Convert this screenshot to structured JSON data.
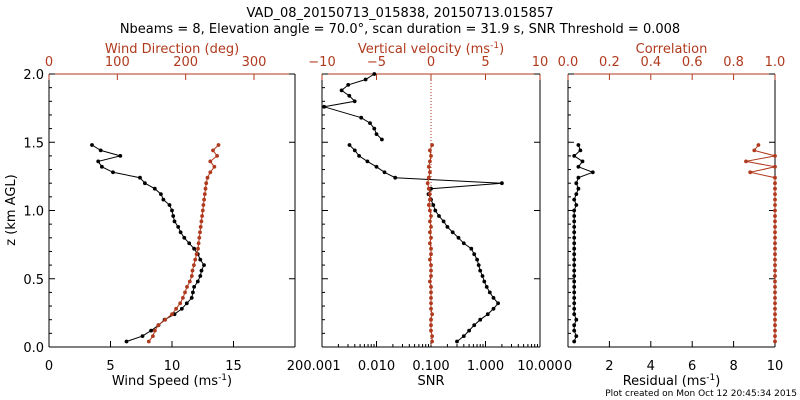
{
  "title_line1": "VAD_08_20150713_015838, 20150713.015857",
  "title_line2": "Nbeams = 8, Elevation angle = 70.0°, scan duration = 31.9 s, SNR Threshold = 0.008",
  "footer": "Plot created on Mon Oct 12 20:45:34 2015",
  "colors": {
    "primary": "#000000",
    "secondary": "#b03a1e"
  },
  "chart_data": [
    {
      "type": "line",
      "ylabel": "z (km AGL)",
      "ylim": [
        0,
        2.0
      ],
      "yticks": [
        "0.0",
        "0.5",
        "1.0",
        "1.5",
        "2.0"
      ],
      "bottom_axis": {
        "label": "Wind Speed (ms",
        "label_sup": "-1",
        "label_end": ")",
        "xlim": [
          0,
          20
        ],
        "ticks": [
          "0",
          "5",
          "10",
          "15",
          "20"
        ]
      },
      "top_axis": {
        "label": "Wind Direction (deg)",
        "xlim": [
          0,
          360
        ],
        "ticks": [
          "0",
          "100",
          "200",
          "300"
        ]
      },
      "series": [
        {
          "axis": "bottom",
          "color": "#000000",
          "points": [
            [
              6.3,
              0.04
            ],
            [
              7.6,
              0.08
            ],
            [
              8.3,
              0.12
            ],
            [
              8.9,
              0.16
            ],
            [
              9.4,
              0.2
            ],
            [
              10.2,
              0.24
            ],
            [
              10.8,
              0.28
            ],
            [
              11.2,
              0.32
            ],
            [
              11.6,
              0.36
            ],
            [
              11.7,
              0.4
            ],
            [
              11.8,
              0.44
            ],
            [
              12.1,
              0.48
            ],
            [
              12.3,
              0.52
            ],
            [
              12.4,
              0.56
            ],
            [
              12.6,
              0.6
            ],
            [
              12.3,
              0.64
            ],
            [
              12.1,
              0.68
            ],
            [
              11.8,
              0.72
            ],
            [
              11.4,
              0.76
            ],
            [
              11.0,
              0.8
            ],
            [
              10.7,
              0.84
            ],
            [
              10.5,
              0.88
            ],
            [
              10.2,
              0.92
            ],
            [
              10.1,
              0.96
            ],
            [
              10.0,
              1.0
            ],
            [
              9.8,
              1.04
            ],
            [
              9.3,
              1.08
            ],
            [
              9.1,
              1.12
            ],
            [
              8.6,
              1.16
            ],
            [
              7.8,
              1.2
            ],
            [
              7.4,
              1.24
            ],
            [
              5.2,
              1.28
            ],
            [
              4.3,
              1.32
            ],
            [
              4.0,
              1.36
            ],
            [
              5.8,
              1.4
            ],
            [
              4.2,
              1.44
            ],
            [
              3.5,
              1.48
            ]
          ]
        },
        {
          "axis": "top",
          "color": "#b03a1e",
          "points": [
            [
              146,
              0.04
            ],
            [
              152,
              0.08
            ],
            [
              155,
              0.12
            ],
            [
              160,
              0.16
            ],
            [
              170,
              0.2
            ],
            [
              180,
              0.24
            ],
            [
              186,
              0.28
            ],
            [
              192,
              0.32
            ],
            [
              196,
              0.36
            ],
            [
              199,
              0.4
            ],
            [
              202,
              0.44
            ],
            [
              206,
              0.48
            ],
            [
              209,
              0.52
            ],
            [
              210,
              0.56
            ],
            [
              212,
              0.6
            ],
            [
              214,
              0.64
            ],
            [
              216,
              0.68
            ],
            [
              218,
              0.72
            ],
            [
              219,
              0.76
            ],
            [
              220,
              0.8
            ],
            [
              221,
              0.84
            ],
            [
              222,
              0.88
            ],
            [
              223,
              0.92
            ],
            [
              224,
              0.96
            ],
            [
              225,
              1.0
            ],
            [
              226,
              1.04
            ],
            [
              227,
              1.08
            ],
            [
              228,
              1.12
            ],
            [
              229,
              1.16
            ],
            [
              230,
              1.2
            ],
            [
              232,
              1.24
            ],
            [
              236,
              1.28
            ],
            [
              242,
              1.32
            ],
            [
              236,
              1.36
            ],
            [
              246,
              1.4
            ],
            [
              240,
              1.44
            ],
            [
              248,
              1.48
            ]
          ]
        }
      ]
    },
    {
      "type": "line",
      "bottom_axis": {
        "label": "SNR",
        "xlim": [
          0.001,
          10
        ],
        "scale": "log",
        "ticks": [
          "0.001",
          "0.010",
          "0.100",
          "1.000",
          "10.000"
        ]
      },
      "top_axis": {
        "label": "Vertical velocity (ms",
        "label_sup": "-1",
        "label_end": ")",
        "xlim": [
          -10,
          10
        ],
        "ticks": [
          "−10",
          "−5",
          "0",
          "5",
          "10"
        ]
      },
      "zero_line": {
        "axis": "top",
        "value": 0
      },
      "series": [
        {
          "axis": "bottom",
          "color": "#000000",
          "points": [
            [
              0.3,
              0.04
            ],
            [
              0.4,
              0.08
            ],
            [
              0.5,
              0.12
            ],
            [
              0.62,
              0.16
            ],
            [
              0.8,
              0.2
            ],
            [
              1.1,
              0.24
            ],
            [
              1.4,
              0.28
            ],
            [
              1.7,
              0.32
            ],
            [
              1.4,
              0.36
            ],
            [
              1.2,
              0.4
            ],
            [
              1.05,
              0.44
            ],
            [
              0.95,
              0.48
            ],
            [
              0.88,
              0.52
            ],
            [
              0.8,
              0.56
            ],
            [
              0.75,
              0.6
            ],
            [
              0.7,
              0.64
            ],
            [
              0.62,
              0.68
            ],
            [
              0.55,
              0.72
            ],
            [
              0.4,
              0.76
            ],
            [
              0.32,
              0.8
            ],
            [
              0.25,
              0.84
            ],
            [
              0.2,
              0.88
            ],
            [
              0.17,
              0.92
            ],
            [
              0.14,
              0.96
            ],
            [
              0.12,
              1.0
            ],
            [
              0.11,
              1.04
            ],
            [
              0.1,
              1.08
            ],
            [
              0.09,
              1.12
            ],
            [
              0.1,
              1.16
            ],
            [
              2.0,
              1.2
            ],
            [
              0.022,
              1.24
            ],
            [
              0.014,
              1.28
            ],
            [
              0.01,
              1.32
            ],
            [
              0.0068,
              1.36
            ],
            [
              0.0048,
              1.4
            ],
            [
              0.004,
              1.44
            ],
            [
              0.0032,
              1.48
            ]
          ]
        },
        {
          "axis": "top",
          "color": "#000000",
          "points": [
            [
              -4.5,
              1.52
            ],
            [
              -5.0,
              1.56
            ],
            [
              -5.2,
              1.6
            ],
            [
              -5.6,
              1.64
            ],
            [
              -6.4,
              1.68
            ],
            [
              -9.8,
              1.76
            ],
            [
              -7.0,
              1.8
            ],
            [
              -7.5,
              1.84
            ],
            [
              -8.2,
              1.88
            ],
            [
              -7.6,
              1.92
            ],
            [
              -6.0,
              1.96
            ],
            [
              -5.2,
              2.0
            ]
          ]
        },
        {
          "axis": "top",
          "color": "#b03a1e",
          "points": [
            [
              0.1,
              0.04
            ],
            [
              0.1,
              0.08
            ],
            [
              0.0,
              0.12
            ],
            [
              0.0,
              0.16
            ],
            [
              0.0,
              0.2
            ],
            [
              0.1,
              0.24
            ],
            [
              0.0,
              0.28
            ],
            [
              0.0,
              0.32
            ],
            [
              0.0,
              0.36
            ],
            [
              0.0,
              0.4
            ],
            [
              0.0,
              0.44
            ],
            [
              -0.1,
              0.48
            ],
            [
              0.0,
              0.52
            ],
            [
              0.0,
              0.56
            ],
            [
              0.0,
              0.6
            ],
            [
              -0.1,
              0.64
            ],
            [
              0.0,
              0.68
            ],
            [
              0.0,
              0.72
            ],
            [
              -0.1,
              0.76
            ],
            [
              0.0,
              0.8
            ],
            [
              -0.1,
              0.84
            ],
            [
              0.0,
              0.88
            ],
            [
              -0.1,
              0.92
            ],
            [
              0.0,
              0.96
            ],
            [
              -0.1,
              1.0
            ],
            [
              -0.2,
              1.04
            ],
            [
              -0.1,
              1.08
            ],
            [
              -0.1,
              1.12
            ],
            [
              -0.2,
              1.16
            ],
            [
              -0.3,
              1.2
            ],
            [
              -0.2,
              1.24
            ],
            [
              -0.1,
              1.28
            ],
            [
              -0.2,
              1.32
            ],
            [
              -0.1,
              1.36
            ],
            [
              0.0,
              1.4
            ],
            [
              -0.1,
              1.44
            ],
            [
              0.1,
              1.48
            ]
          ]
        }
      ]
    },
    {
      "type": "line",
      "bottom_axis": {
        "label": "Residual (ms",
        "label_sup": "-1",
        "label_end": ")",
        "xlim": [
          0,
          10
        ],
        "ticks": [
          "0",
          "2",
          "4",
          "6",
          "8",
          "10"
        ]
      },
      "top_axis": {
        "label": "Correlation",
        "xlim": [
          0,
          1.0
        ],
        "ticks": [
          "0.0",
          "0.2",
          "0.4",
          "0.6",
          "0.8",
          "1.0"
        ]
      },
      "series": [
        {
          "axis": "bottom",
          "color": "#000000",
          "points": [
            [
              0.3,
              0.04
            ],
            [
              0.4,
              0.08
            ],
            [
              0.3,
              0.12
            ],
            [
              0.3,
              0.16
            ],
            [
              0.4,
              0.2
            ],
            [
              0.3,
              0.24
            ],
            [
              0.3,
              0.28
            ],
            [
              0.3,
              0.32
            ],
            [
              0.3,
              0.36
            ],
            [
              0.3,
              0.4
            ],
            [
              0.3,
              0.44
            ],
            [
              0.3,
              0.48
            ],
            [
              0.3,
              0.52
            ],
            [
              0.3,
              0.56
            ],
            [
              0.3,
              0.6
            ],
            [
              0.3,
              0.64
            ],
            [
              0.3,
              0.68
            ],
            [
              0.3,
              0.72
            ],
            [
              0.3,
              0.76
            ],
            [
              0.3,
              0.8
            ],
            [
              0.3,
              0.84
            ],
            [
              0.3,
              0.88
            ],
            [
              0.3,
              0.92
            ],
            [
              0.3,
              0.96
            ],
            [
              0.3,
              1.0
            ],
            [
              0.4,
              1.04
            ],
            [
              0.3,
              1.08
            ],
            [
              0.4,
              1.12
            ],
            [
              0.5,
              1.16
            ],
            [
              0.4,
              1.2
            ],
            [
              0.5,
              1.24
            ],
            [
              1.2,
              1.28
            ],
            [
              0.5,
              1.32
            ],
            [
              0.7,
              1.36
            ],
            [
              0.3,
              1.4
            ],
            [
              0.6,
              1.44
            ],
            [
              0.5,
              1.48
            ]
          ]
        },
        {
          "axis": "top",
          "color": "#b03a1e",
          "points": [
            [
              1.0,
              0.04
            ],
            [
              1.0,
              0.08
            ],
            [
              1.0,
              0.12
            ],
            [
              1.0,
              0.16
            ],
            [
              1.0,
              0.2
            ],
            [
              1.0,
              0.24
            ],
            [
              1.0,
              0.28
            ],
            [
              1.0,
              0.32
            ],
            [
              1.0,
              0.36
            ],
            [
              1.0,
              0.4
            ],
            [
              1.0,
              0.44
            ],
            [
              1.0,
              0.48
            ],
            [
              1.0,
              0.52
            ],
            [
              1.0,
              0.56
            ],
            [
              1.0,
              0.6
            ],
            [
              1.0,
              0.64
            ],
            [
              1.0,
              0.68
            ],
            [
              1.0,
              0.72
            ],
            [
              1.0,
              0.76
            ],
            [
              1.0,
              0.8
            ],
            [
              1.0,
              0.84
            ],
            [
              1.0,
              0.88
            ],
            [
              1.0,
              0.92
            ],
            [
              1.0,
              0.96
            ],
            [
              1.0,
              1.0
            ],
            [
              1.0,
              1.04
            ],
            [
              1.0,
              1.08
            ],
            [
              1.0,
              1.12
            ],
            [
              1.0,
              1.16
            ],
            [
              1.0,
              1.2
            ],
            [
              1.0,
              1.24
            ],
            [
              0.88,
              1.28
            ],
            [
              1.0,
              1.32
            ],
            [
              0.86,
              1.36
            ],
            [
              1.0,
              1.4
            ],
            [
              0.9,
              1.44
            ],
            [
              0.92,
              1.48
            ]
          ]
        }
      ]
    }
  ]
}
